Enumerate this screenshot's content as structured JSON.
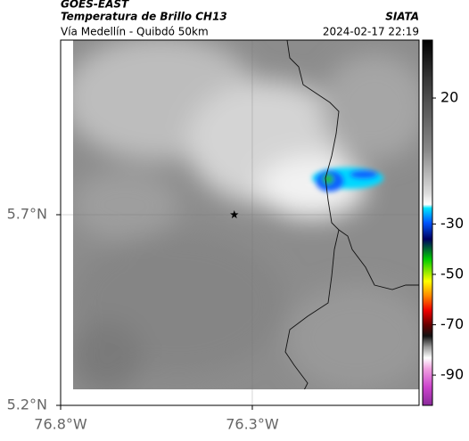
{
  "header": {
    "satellite": "GOES-EAST",
    "product": "Temperatura de Brillo CH13",
    "source": "SIATA",
    "route": "Vía Medellín - Quibdó 50km",
    "datetime": "2024-02-17 22:19"
  },
  "chart_data": {
    "type": "map",
    "xlim": [
      -76.8,
      -75.865
    ],
    "ylim": [
      5.2,
      6.158
    ],
    "xticks": [
      {
        "value": -76.8,
        "label": "76.8°W"
      },
      {
        "value": -76.3,
        "label": "76.3°W"
      }
    ],
    "yticks": [
      {
        "value": 5.2,
        "label": "5.2°N"
      },
      {
        "value": 5.7,
        "label": "5.7°N"
      }
    ],
    "grid": true,
    "marker": {
      "lon": -76.347,
      "lat": 5.7
    },
    "colorbar": {
      "clim": [
        -102,
        43
      ],
      "ticks": [
        20,
        -30,
        -50,
        -70,
        -90
      ]
    }
  }
}
